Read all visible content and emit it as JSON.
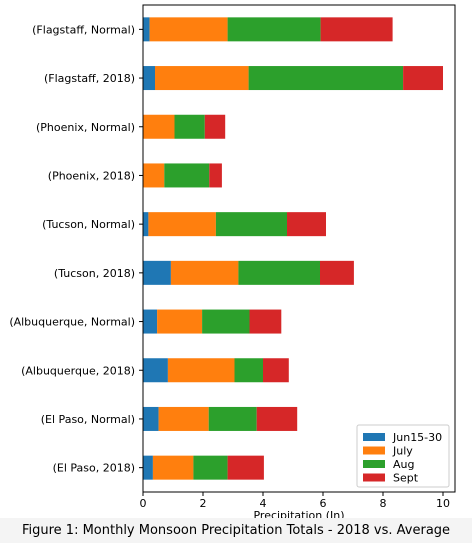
{
  "caption": "Figure 1: Monthly Monsoon Precipitation Totals - 2018 vs. Average",
  "chart_data": {
    "type": "bar",
    "orientation": "horizontal",
    "stacked": true,
    "title": "",
    "xlabel": "Precipitation (In)",
    "ylabel": "",
    "xlim": [
      0,
      10.4
    ],
    "xticks": [
      0,
      2,
      4,
      6,
      8,
      10
    ],
    "grid": false,
    "legend_position": "lower-right",
    "categories": [
      "(Flagstaff, Normal)",
      "(Flagstaff, 2018)",
      "(Phoenix, Normal)",
      "(Phoenix, 2018)",
      "(Tucson, Normal)",
      "(Tucson, 2018)",
      "(Albuquerque, Normal)",
      "(Albuquerque, 2018)",
      "(El Paso, Normal)",
      "(El Paso, 2018)"
    ],
    "series": [
      {
        "name": "Jun15-30",
        "color": "#1f77b4",
        "values": [
          0.22,
          0.4,
          0.0,
          0.0,
          0.18,
          0.93,
          0.47,
          0.83,
          0.52,
          0.33
        ]
      },
      {
        "name": "July",
        "color": "#ff7f0e",
        "values": [
          2.6,
          3.12,
          1.05,
          0.71,
          2.25,
          2.25,
          1.5,
          2.22,
          1.67,
          1.35
        ]
      },
      {
        "name": "Aug",
        "color": "#2ca02c",
        "values": [
          3.1,
          5.15,
          1.01,
          1.5,
          2.37,
          2.72,
          1.58,
          0.95,
          1.6,
          1.14
        ]
      },
      {
        "name": "Sept",
        "color": "#d62728",
        "values": [
          2.4,
          1.33,
          0.68,
          0.42,
          1.3,
          1.13,
          1.06,
          0.86,
          1.35,
          1.21
        ]
      }
    ]
  }
}
